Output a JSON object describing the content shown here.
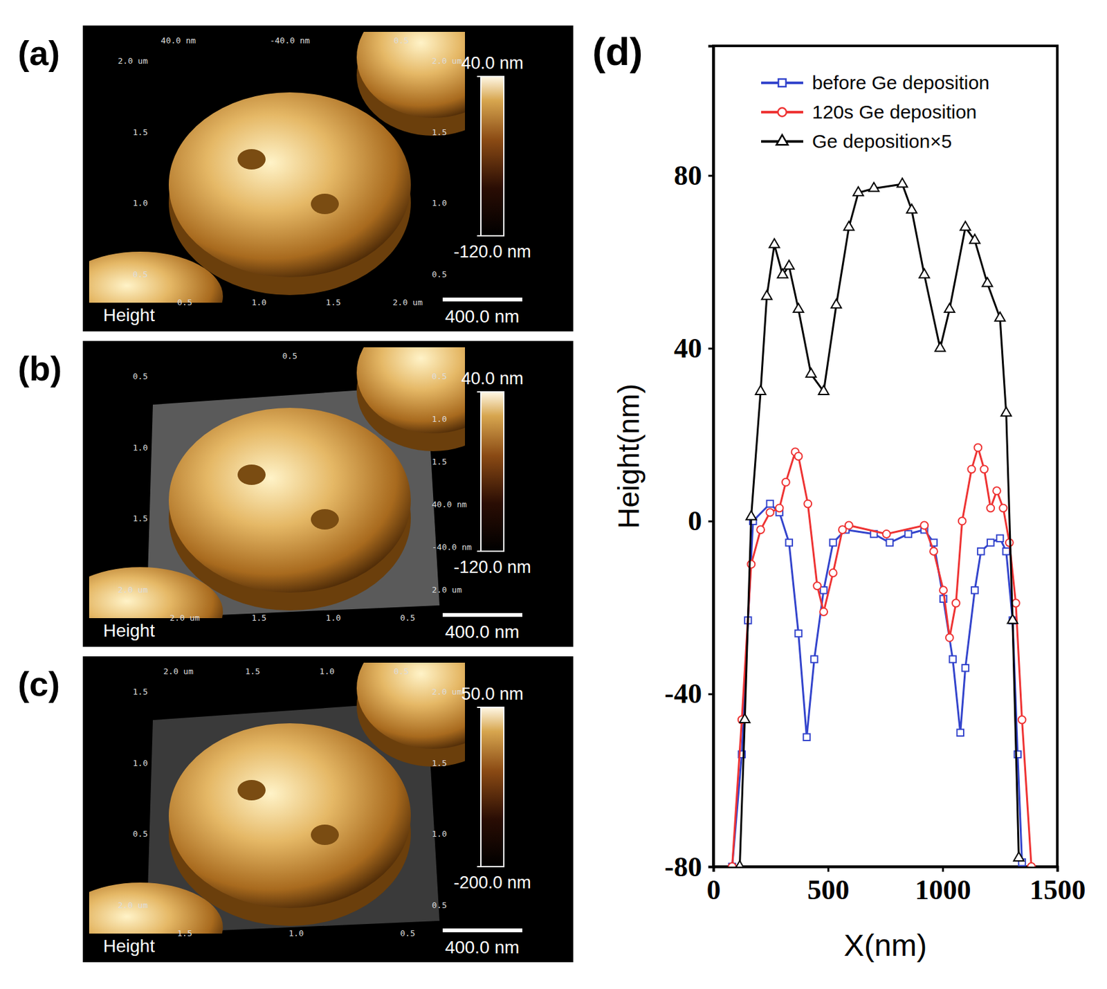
{
  "panels": [
    {
      "letter": "(a)",
      "channel": "Height",
      "scale_bar": "400.0 nm",
      "colorbar": {
        "range": [
          -120,
          40
        ],
        "ticks": [
          {
            "value": 40,
            "label": "40.0 nm"
          },
          {
            "value": -120,
            "label": "-120.0 nm"
          }
        ]
      },
      "frame_labels": {
        "top": [
          "40.0 nm",
          "-40.0 nm",
          "0.5"
        ],
        "left": [
          "2.0 um",
          "1.5",
          "1.0",
          "0.5"
        ],
        "bottom": [
          "0.5",
          "1.0",
          "1.5",
          "2.0 um"
        ],
        "right": [
          "2.0 um",
          "1.5",
          "1.0",
          "0.5"
        ]
      }
    },
    {
      "letter": "(b)",
      "channel": "Height",
      "scale_bar": "400.0 nm",
      "colorbar": {
        "range": [
          -120,
          40
        ],
        "ticks": [
          {
            "value": 40,
            "label": "40.0 nm"
          },
          {
            "value": -120,
            "label": "-120.0 nm"
          }
        ]
      },
      "frame_labels": {
        "top": [
          "0.5"
        ],
        "left": [
          "0.5",
          "1.0",
          "1.5",
          "2.0 um"
        ],
        "bottom": [
          "2.0 um",
          "1.5",
          "1.0",
          "0.5"
        ],
        "right": [
          "0.5",
          "1.0",
          "1.5",
          "40.0 nm",
          "-40.0 nm",
          "2.0 um"
        ]
      }
    },
    {
      "letter": "(c)",
      "channel": "Height",
      "scale_bar": "400.0 nm",
      "colorbar": {
        "range": [
          -200,
          50
        ],
        "ticks": [
          {
            "value": 50,
            "label": "50.0 nm"
          },
          {
            "value": -200,
            "label": "-200.0 nm"
          }
        ]
      },
      "frame_labels": {
        "top": [
          "2.0 um",
          "1.5",
          "1.0",
          "0.5"
        ],
        "left": [
          "1.5",
          "1.0",
          "0.5",
          "2.0 um"
        ],
        "bottom": [
          "1.5",
          "1.0",
          "0.5"
        ],
        "right": [
          "2.0 um",
          "1.5",
          "1.0",
          "0.5"
        ]
      }
    }
  ],
  "chart_data": {
    "type": "line",
    "letter": "(d)",
    "x_label": "X(nm)",
    "y_label": "Height(nm)",
    "xlim": [
      0,
      1500
    ],
    "ylim": [
      -80,
      110
    ],
    "xticks": [
      0,
      500,
      1000,
      1500
    ],
    "yticks": [
      -80,
      -40,
      0,
      40,
      80
    ],
    "grid": false,
    "legend": "top",
    "series": [
      {
        "name": "before Ge deposition",
        "color": "#3344cc",
        "marker": "square",
        "line_style": "solid",
        "x": [
          82,
          124,
          151,
          173,
          247,
          288,
          330,
          371,
          407,
          440,
          481,
          522,
          577,
          700,
          769,
          850,
          920,
          961,
          1003,
          1044,
          1077,
          1099,
          1140,
          1167,
          1209,
          1250,
          1277,
          1305,
          1327,
          1346
        ],
        "values": [
          -80,
          -54,
          -23,
          0,
          4,
          2,
          -5,
          -26,
          -50,
          -32,
          -16,
          -5,
          -2,
          -3,
          -5,
          -3,
          -2,
          -5,
          -18,
          -32,
          -49,
          -34,
          -16,
          -7,
          -5,
          -4,
          -7,
          -23,
          -54,
          -79
        ]
      },
      {
        "name": "120s Ge deposition",
        "color": "#ee3333",
        "marker": "circle",
        "line_style": "solid",
        "x": [
          82,
          124,
          165,
          206,
          247,
          288,
          316,
          357,
          371,
          412,
          453,
          481,
          522,
          563,
          591,
          755,
          920,
          961,
          1003,
          1030,
          1058,
          1085,
          1126,
          1154,
          1181,
          1209,
          1236,
          1264,
          1291,
          1319,
          1346,
          1387
        ],
        "values": [
          -80,
          -46,
          -10,
          -2,
          2,
          3,
          9,
          16,
          15,
          4,
          -15,
          -21,
          -12,
          -2,
          -1,
          -3,
          -1,
          -7,
          -16,
          -27,
          -19,
          0,
          12,
          17,
          12,
          3,
          7,
          3,
          -5,
          -19,
          -46,
          -80
        ]
      },
      {
        "name": "Ge deposition×5",
        "color": "#000000",
        "marker": "triangle",
        "line_style": "solid",
        "x": [
          115,
          137,
          165,
          206,
          233,
          266,
          302,
          330,
          371,
          426,
          481,
          536,
          591,
          632,
          700,
          824,
          865,
          920,
          989,
          1030,
          1099,
          1140,
          1195,
          1250,
          1277,
          1305,
          1332
        ],
        "values": [
          -80,
          -46,
          1,
          30,
          52,
          64,
          57,
          59,
          49,
          34,
          30,
          50,
          68,
          76,
          77,
          78,
          72,
          57,
          40,
          49,
          68,
          65,
          55,
          47,
          25,
          -23,
          -78
        ]
      }
    ]
  }
}
